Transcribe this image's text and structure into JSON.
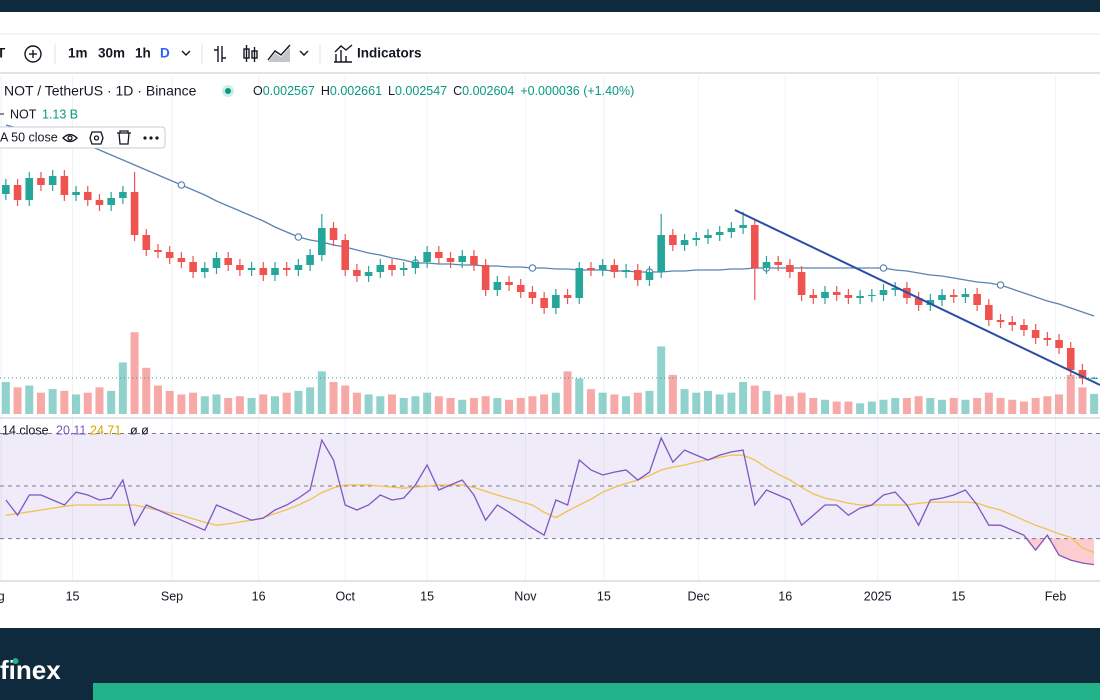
{
  "toolbar": {
    "symbol": "T",
    "intervals": [
      "1m",
      "30m",
      "1h",
      "D"
    ],
    "indicators": "Indicators"
  },
  "chart_data": {
    "type": "candlestick",
    "title": "NOT / TetherUS · 1D · Binance",
    "ohlc_letters": [
      "O",
      "H",
      "L",
      "C"
    ],
    "change": "+0.000036 (+1.40%)",
    "up_color": "#26a69a",
    "down_color": "#ef5350",
    "x": [
      0,
      1,
      2,
      3,
      4,
      5,
      6,
      7,
      8,
      9,
      10,
      11,
      12,
      13,
      14,
      15,
      16,
      17,
      18,
      19,
      20,
      21,
      22,
      23,
      24,
      25,
      26,
      27,
      28,
      29,
      30,
      31,
      32,
      33,
      34,
      35,
      36,
      37,
      38,
      39,
      40,
      41,
      42,
      43,
      44,
      45,
      46,
      47,
      48,
      49,
      50,
      51,
      52,
      53,
      54,
      55,
      56,
      57,
      58,
      59,
      60,
      61,
      62,
      63,
      64,
      65,
      66,
      67,
      68,
      69,
      70,
      71,
      72,
      73,
      74,
      75,
      76,
      77,
      78,
      79,
      80,
      81,
      82,
      83,
      84,
      85,
      86,
      87,
      88,
      89,
      90,
      91,
      92,
      93
    ],
    "open": [
      0.0118,
      0.01225,
      0.0115,
      0.0126,
      0.01225,
      0.0127,
      0.01175,
      0.0119,
      0.0115,
      0.01125,
      0.0116,
      0.0119,
      0.00975,
      0.009,
      0.0089,
      0.0086,
      0.0084,
      0.0079,
      0.0081,
      0.0086,
      0.00825,
      0.008,
      0.0081,
      0.00775,
      0.0081,
      0.008,
      0.00825,
      0.00875,
      0.0101,
      0.0095,
      0.008,
      0.0077,
      0.0079,
      0.00825,
      0.008,
      0.0081,
      0.0084,
      0.0089,
      0.0086,
      0.0084,
      0.0087,
      0.00825,
      0.007,
      0.0074,
      0.00725,
      0.0069,
      0.0066,
      0.0061,
      0.00675,
      0.0066,
      0.0081,
      0.008,
      0.00825,
      0.0079,
      0.008,
      0.0075,
      0.0079,
      0.00975,
      0.00925,
      0.0095,
      0.0096,
      0.00975,
      0.0099,
      0.0101,
      0.01025,
      0.0081,
      0.0084,
      0.00825,
      0.0079,
      0.00675,
      0.0066,
      0.0069,
      0.00675,
      0.0066,
      0.0067,
      0.00675,
      0.007,
      0.0071,
      0.0066,
      0.00625,
      0.0065,
      0.00675,
      0.00665,
      0.0068,
      0.00625,
      0.0055,
      0.0054,
      0.00525,
      0.005,
      0.0046,
      0.0045,
      0.0041,
      0.003,
      0.002567
    ],
    "high": [
      0.01255,
      0.01255,
      0.0129,
      0.0129,
      0.013,
      0.013,
      0.0122,
      0.0122,
      0.0118,
      0.0119,
      0.0122,
      0.0129,
      0.01005,
      0.0093,
      0.0092,
      0.0089,
      0.0087,
      0.0084,
      0.0089,
      0.0089,
      0.00855,
      0.0084,
      0.0084,
      0.0084,
      0.0084,
      0.00855,
      0.00905,
      0.0108,
      0.0104,
      0.0098,
      0.0083,
      0.0082,
      0.00855,
      0.00855,
      0.0084,
      0.0087,
      0.0092,
      0.0092,
      0.0089,
      0.009,
      0.009,
      0.00855,
      0.0077,
      0.0077,
      0.00755,
      0.0072,
      0.0069,
      0.00705,
      0.00705,
      0.0084,
      0.0084,
      0.00855,
      0.00855,
      0.0083,
      0.0083,
      0.0082,
      0.0108,
      0.01005,
      0.0098,
      0.0099,
      0.01005,
      0.0102,
      0.0104,
      0.0109,
      0.01055,
      0.0087,
      0.0087,
      0.00855,
      0.0082,
      0.00705,
      0.0072,
      0.0072,
      0.00705,
      0.007,
      0.00705,
      0.0073,
      0.0074,
      0.0074,
      0.0069,
      0.0068,
      0.00705,
      0.00705,
      0.0071,
      0.0071,
      0.00655,
      0.0058,
      0.0057,
      0.00555,
      0.0053,
      0.0049,
      0.0048,
      0.0044,
      0.0033,
      0.002661
    ],
    "low": [
      0.0115,
      0.0112,
      0.0112,
      0.01195,
      0.01195,
      0.01145,
      0.01145,
      0.0112,
      0.01095,
      0.01095,
      0.0113,
      0.00945,
      0.0087,
      0.0086,
      0.0083,
      0.0081,
      0.0076,
      0.0076,
      0.0078,
      0.00795,
      0.0077,
      0.0077,
      0.00745,
      0.00745,
      0.0077,
      0.0077,
      0.00795,
      0.00845,
      0.0092,
      0.0077,
      0.0074,
      0.0074,
      0.0076,
      0.0077,
      0.0077,
      0.0078,
      0.0081,
      0.0083,
      0.0081,
      0.0081,
      0.00795,
      0.0067,
      0.0067,
      0.00695,
      0.0066,
      0.0063,
      0.0058,
      0.0058,
      0.0063,
      0.0063,
      0.0077,
      0.0077,
      0.0076,
      0.0076,
      0.0072,
      0.0072,
      0.0076,
      0.00895,
      0.00895,
      0.0092,
      0.0093,
      0.00945,
      0.0096,
      0.0098,
      0.0065,
      0.0078,
      0.00795,
      0.0076,
      0.00645,
      0.0063,
      0.0063,
      0.00645,
      0.0063,
      0.0063,
      0.0064,
      0.00645,
      0.0067,
      0.0063,
      0.00595,
      0.00595,
      0.0062,
      0.00635,
      0.00635,
      0.00595,
      0.0052,
      0.0051,
      0.00495,
      0.0047,
      0.0043,
      0.0042,
      0.0038,
      0.0027,
      0.00227,
      0.002547
    ],
    "close": [
      0.01225,
      0.0115,
      0.0126,
      0.01225,
      0.0127,
      0.01175,
      0.0119,
      0.0115,
      0.01125,
      0.0116,
      0.0119,
      0.00975,
      0.009,
      0.0089,
      0.0086,
      0.0084,
      0.0079,
      0.0081,
      0.0086,
      0.00825,
      0.008,
      0.0081,
      0.00775,
      0.0081,
      0.008,
      0.00825,
      0.00875,
      0.0101,
      0.0095,
      0.008,
      0.0077,
      0.0079,
      0.00825,
      0.008,
      0.0081,
      0.0084,
      0.0089,
      0.0086,
      0.0084,
      0.0087,
      0.00825,
      0.007,
      0.0074,
      0.00725,
      0.0069,
      0.0066,
      0.0061,
      0.00675,
      0.0066,
      0.0081,
      0.008,
      0.00825,
      0.0079,
      0.008,
      0.0075,
      0.0079,
      0.00975,
      0.00925,
      0.0095,
      0.0096,
      0.00975,
      0.0099,
      0.0101,
      0.01025,
      0.0081,
      0.0084,
      0.00825,
      0.0079,
      0.00675,
      0.0066,
      0.0069,
      0.00675,
      0.0066,
      0.0067,
      0.00675,
      0.007,
      0.0071,
      0.0066,
      0.00625,
      0.0065,
      0.00675,
      0.00665,
      0.0068,
      0.00625,
      0.0055,
      0.0054,
      0.00525,
      0.005,
      0.0046,
      0.0045,
      0.0041,
      0.003,
      0.00257,
      0.002604
    ],
    "xlim": [
      -0.5,
      93.5
    ],
    "ylim": [
      0.00075,
      0.0175
    ],
    "xticks": [
      {
        "value": -0.4,
        "label": "g"
      },
      {
        "value": 5.7,
        "label": "15"
      },
      {
        "value": 14.2,
        "label": "Sep"
      },
      {
        "value": 21.6,
        "label": "16"
      },
      {
        "value": 29,
        "label": "Oct"
      },
      {
        "value": 36,
        "label": "15"
      },
      {
        "value": 44.4,
        "label": "Nov"
      },
      {
        "value": 51.1,
        "label": "15"
      },
      {
        "value": 59.2,
        "label": "Dec"
      },
      {
        "value": 66.6,
        "label": "16"
      },
      {
        "value": 74.5,
        "label": "2025"
      },
      {
        "value": 81.4,
        "label": "15"
      },
      {
        "value": 89.7,
        "label": "Feb"
      }
    ],
    "ma": {
      "name": "A 50 close",
      "color": "#5b83b0",
      "values": [
        0.01525,
        0.0151,
        0.01495,
        0.0148,
        0.01465,
        0.01455,
        0.0144,
        0.01425,
        0.014,
        0.01375,
        0.0135,
        0.01325,
        0.013,
        0.01275,
        0.0125,
        0.01225,
        0.012,
        0.01175,
        0.01145,
        0.0112,
        0.01095,
        0.0107,
        0.01045,
        0.01015,
        0.0099,
        0.00965,
        0.0095,
        0.0094,
        0.00925,
        0.00915,
        0.009,
        0.00885,
        0.00875,
        0.0086,
        0.0085,
        0.00835,
        0.00835,
        0.0083,
        0.0083,
        0.00825,
        0.00825,
        0.0082,
        0.0082,
        0.00815,
        0.00815,
        0.0081,
        0.0081,
        0.00805,
        0.00805,
        0.008,
        0.008,
        0.008,
        0.00795,
        0.00795,
        0.0079,
        0.0079,
        0.0079,
        0.00795,
        0.00795,
        0.008,
        0.008,
        0.008,
        0.00805,
        0.00805,
        0.0081,
        0.0081,
        0.0081,
        0.0081,
        0.0081,
        0.0081,
        0.0081,
        0.0081,
        0.0081,
        0.0081,
        0.0081,
        0.0081,
        0.008,
        0.00795,
        0.00785,
        0.00775,
        0.0077,
        0.0076,
        0.0075,
        0.0074,
        0.00735,
        0.00725,
        0.00705,
        0.00685,
        0.00665,
        0.00645,
        0.0063,
        0.0061,
        0.0059,
        0.0057
      ]
    },
    "volume": {
      "name": "NOT",
      "value_label": "1.13 B",
      "ylim": [
        0,
        9000000000.0
      ],
      "values": [
        1800000000.0,
        1500000000.0,
        1600000000.0,
        1200000000.0,
        1400000000.0,
        1300000000.0,
        1100000000.0,
        1200000000.0,
        1500000000.0,
        1300000000.0,
        2900000000.0,
        4600000000.0,
        2600000000.0,
        1600000000.0,
        1300000000.0,
        1100000000.0,
        1200000000.0,
        1000000000.0,
        1100000000.0,
        900000000.0,
        1000000000.0,
        900000000.0,
        1100000000.0,
        1000000000.0,
        1200000000.0,
        1300000000.0,
        1500000000.0,
        2400000000.0,
        1800000000.0,
        1600000000.0,
        1200000000.0,
        1100000000.0,
        1000000000.0,
        1100000000.0,
        900000000.0,
        1000000000.0,
        1200000000.0,
        1000000000.0,
        900000000.0,
        800000000.0,
        900000000.0,
        1000000000.0,
        900000000.0,
        800000000.0,
        900000000.0,
        1000000000.0,
        1100000000.0,
        1200000000.0,
        2400000000.0,
        2000000000.0,
        1400000000.0,
        1200000000.0,
        1100000000.0,
        1000000000.0,
        1200000000.0,
        1300000000.0,
        3800000000.0,
        2200000000.0,
        1400000000.0,
        1200000000.0,
        1300000000.0,
        1100000000.0,
        1200000000.0,
        1800000000.0,
        1600000000.0,
        1300000000.0,
        1100000000.0,
        1000000000.0,
        1200000000.0,
        900000000.0,
        800000000.0,
        700000000.0,
        700000000.0,
        600000000.0,
        700000000.0,
        800000000.0,
        900000000.0,
        900000000.0,
        1000000000.0,
        900000000.0,
        800000000.0,
        900000000.0,
        800000000.0,
        900000000.0,
        1200000000.0,
        900000000.0,
        800000000.0,
        700000000.0,
        900000000.0,
        1000000000.0,
        1100000000.0,
        2200000000.0,
        1500000000.0,
        1130000000.0
      ]
    },
    "trend_line": {
      "x": [
        62.3,
        93.5
      ],
      "y": [
        0.011,
        0.00225
      ],
      "color": "#2a4ea6"
    },
    "rsi": {
      "name": "14 close",
      "extra": "ø ø",
      "ylim": [
        15,
        78
      ],
      "levels": [
        30,
        50,
        70
      ],
      "color": "#7e57c2",
      "ma_color": "#f2c14e",
      "values": [
        44.7,
        38.9,
        46.6,
        46.6,
        44.7,
        42.8,
        47.7,
        46.6,
        44.7,
        45.4,
        52.3,
        35.1,
        42.8,
        40.9,
        38.9,
        37.0,
        35.1,
        33.2,
        42.8,
        40.9,
        38.9,
        37.0,
        37.8,
        40.9,
        42.8,
        45.4,
        48.5,
        67.5,
        59.9,
        42.8,
        40.9,
        42.8,
        46.6,
        44.7,
        45.4,
        50.4,
        58.0,
        48.5,
        50.4,
        52.3,
        46.6,
        37.0,
        42.8,
        40.1,
        37.0,
        34.0,
        31.3,
        44.7,
        42.8,
        59.9,
        56.1,
        54.2,
        55.3,
        56.1,
        52.3,
        55.3,
        68.3,
        59.1,
        63.7,
        61.8,
        59.9,
        61.8,
        63.0,
        63.7,
        42.8,
        48.5,
        46.6,
        44.7,
        35.1,
        38.9,
        42.8,
        42.8,
        38.9,
        41.6,
        42.8,
        46.6,
        47.7,
        42.8,
        35.1,
        44.7,
        45.4,
        46.6,
        48.5,
        42.8,
        35.1,
        35.1,
        33.2,
        31.3,
        25.6,
        31.3,
        23.7,
        21.8,
        20.7,
        20.11
      ],
      "ma_values": [
        38.9,
        39.5,
        40.2,
        40.9,
        41.6,
        42.3,
        42.8,
        42.8,
        42.8,
        42.8,
        42.8,
        42.8,
        41.8,
        40.8,
        39.8,
        38.9,
        37.5,
        36.2,
        35.1,
        35.6,
        36.3,
        37.0,
        38.0,
        39.5,
        41.0,
        42.8,
        44.9,
        47.5,
        49.3,
        50.4,
        50.4,
        50.4,
        50.0,
        49.6,
        49.2,
        49.6,
        50.0,
        50.4,
        50.4,
        50.4,
        49.5,
        48.0,
        46.6,
        45.3,
        44.0,
        42.8,
        40.0,
        38.0,
        40.5,
        42.8,
        45.0,
        47.7,
        49.5,
        51.0,
        52.3,
        54.0,
        56.1,
        57.2,
        58.0,
        59.1,
        60.0,
        61.0,
        61.8,
        61.8,
        59.9,
        57.0,
        54.5,
        52.3,
        49.5,
        47.0,
        45.4,
        44.5,
        43.5,
        42.8,
        42.8,
        42.8,
        42.8,
        42.8,
        43.4,
        43.9,
        43.9,
        43.9,
        43.9,
        43.5,
        42.0,
        40.9,
        39.0,
        37.0,
        35.1,
        33.5,
        31.8,
        30.5,
        26.5,
        24.71
      ]
    }
  },
  "brand": "finex"
}
